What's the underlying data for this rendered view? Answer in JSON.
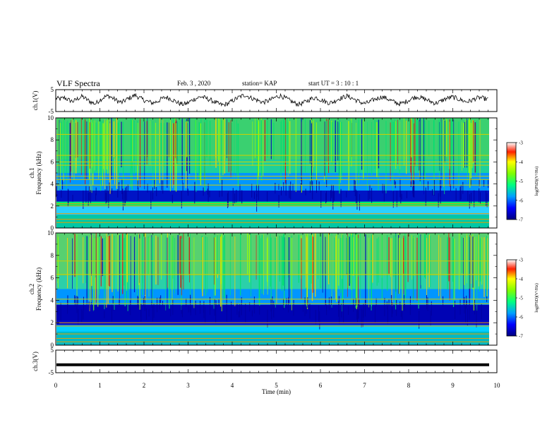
{
  "header": {
    "title": "VLF Spectra",
    "date": "Feb. 3  , 2020",
    "station": "station= KAP",
    "start": "start  UT  =   3  : 10 : 1"
  },
  "chart_data": [
    {
      "type": "line",
      "panel": "ch1-waveform",
      "ylabel": "ch.1(V)",
      "ylim": [
        -5,
        5
      ],
      "yticks": [
        "5",
        "-5"
      ],
      "xlim": [
        0,
        10
      ],
      "series": [
        {
          "values_description_note": "",
          "values": [
            1.2,
            0.8,
            1.5,
            0.2,
            -0.4,
            1.0,
            2.1,
            0.6,
            -0.8,
            -1.6,
            0.4,
            1.8,
            2.4,
            1.1,
            -0.2,
            -1.0,
            0.5,
            1.6,
            2.8,
            1.4,
            0.2,
            -0.6,
            -1.2,
            -0.5,
            0.9,
            1.7,
            1.0,
            -0.3,
            -1.4,
            -2.0,
            -1.1,
            0.3,
            1.3,
            2.0,
            1.2,
            0.4,
            -0.7,
            -1.8,
            -2.3,
            -1.5,
            -0.2,
            1.1,
            2.2,
            2.9,
            1.6,
            0.8,
            -0.1,
            -0.9,
            -0.3,
            0.7,
            1.9,
            2.5,
            1.3,
            0.1,
            -1.1,
            -1.9,
            -1.3,
            -0.1,
            1.0,
            1.6,
            0.5,
            -0.4,
            -1.2,
            -0.6,
            0.8,
            1.5,
            2.3,
            1.4,
            0.3,
            -0.8,
            -1.5,
            -0.9,
            0.4,
            1.2,
            1.9,
            1.1,
            0.0,
            -1.0,
            -1.7,
            -1.0,
            0.2,
            1.4,
            2.0,
            1.2,
            0.5,
            -0.5,
            -1.3,
            -0.7,
            0.6,
            1.3,
            1.8,
            1.0,
            0.2,
            -0.6,
            -0.2,
            0.9,
            1.5,
            1.1,
            0.6
          ]
        }
      ]
    },
    {
      "type": "heatmap",
      "panel": "ch1-spectrogram",
      "ylabel": "ch.1\nFrequency (kHz)",
      "ylim": [
        0,
        10
      ],
      "yticks": [
        "0",
        "2",
        "4",
        "6",
        "8",
        "10"
      ],
      "xlim": [
        0,
        10
      ],
      "colorbar": {
        "label": "log(PSD)(V²/Hz)",
        "range": [
          -7,
          -3
        ],
        "ticks": [
          "-3",
          "-4",
          "-5",
          "-6",
          "-7"
        ]
      }
    },
    {
      "type": "heatmap",
      "panel": "ch2-spectrogram",
      "ylabel": "ch.2\nFrequency (kHz)",
      "ylim": [
        0,
        10
      ],
      "yticks": [
        "0",
        "2",
        "4",
        "6",
        "8",
        "10"
      ],
      "xlim": [
        0,
        10
      ],
      "colorbar": {
        "label": "log(PSD)(V²/Hz)",
        "range": [
          -7,
          -3
        ],
        "ticks": [
          "-3",
          "-4",
          "-5",
          "-6",
          "-7"
        ]
      }
    },
    {
      "type": "line",
      "panel": "ch3-waveform",
      "ylabel": "ch.3(V)",
      "ylim": [
        -5,
        5
      ],
      "yticks": [
        "5",
        "-5"
      ],
      "xlim": [
        0,
        10
      ],
      "series": [
        {
          "values": [
            -1.5,
            -1.5
          ]
        }
      ]
    }
  ],
  "xaxis": {
    "label": "Time  (min)",
    "ticks": [
      "0",
      "1",
      "2",
      "3",
      "4",
      "5",
      "6",
      "7",
      "8",
      "9",
      "10"
    ],
    "range": [
      0,
      10
    ]
  },
  "colors": {
    "low": "#00007f",
    "mid": "#00c8c8",
    "high": "#d20000",
    "band": "#ffff00"
  }
}
